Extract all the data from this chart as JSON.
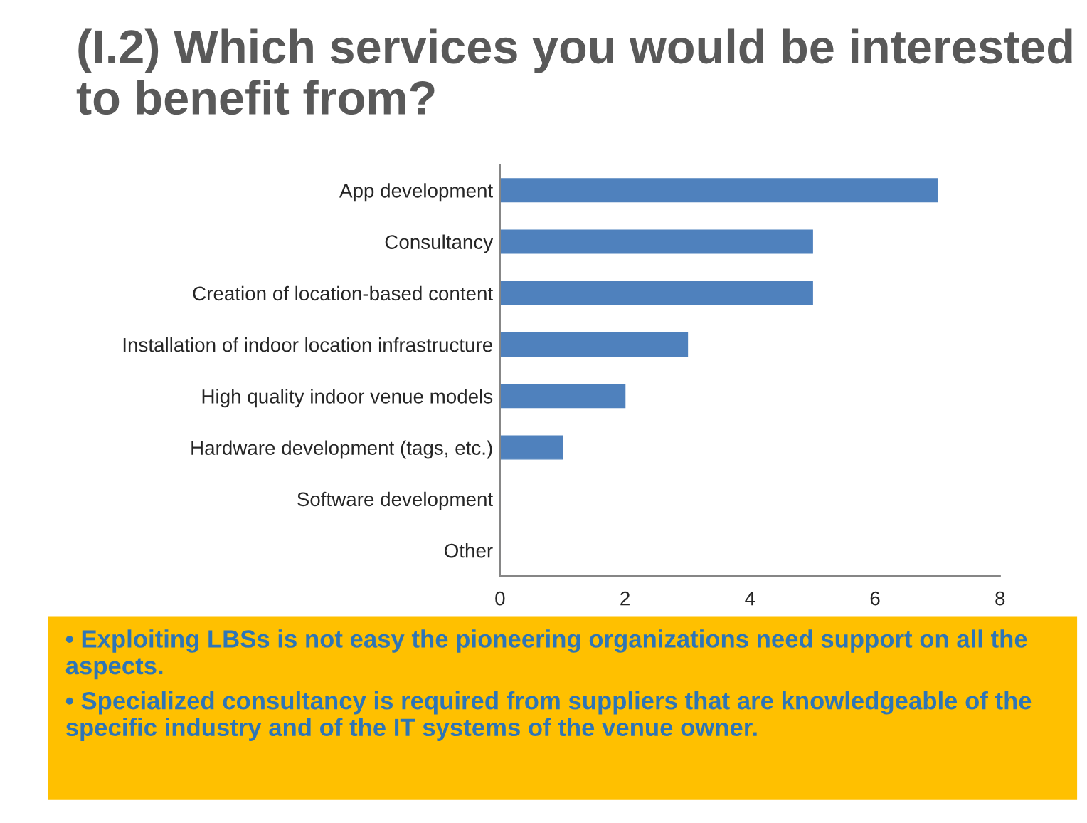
{
  "chart_data": {
    "type": "bar",
    "orientation": "horizontal",
    "title": "(I.2) Which services you would be interested to benefit from?",
    "categories": [
      "App development",
      "Consultancy",
      "Creation of location-based content",
      "Installation of indoor location infrastructure",
      "High quality indoor venue models",
      "Hardware development (tags, etc.)",
      "Software development",
      "Other"
    ],
    "values": [
      7,
      5,
      5,
      3,
      2,
      1,
      0,
      0
    ],
    "color": "#4f81bd",
    "xlim": [
      0,
      8
    ],
    "xticks": [
      0,
      2,
      4,
      6,
      8
    ],
    "grid": false,
    "annotations": [
      "• Exploiting LBSs is not easy the pioneering organizations need support on all the aspects.",
      "• Specialized consultancy is required from suppliers that are knowledgeable of the specific industry and of the IT systems of the venue owner."
    ]
  }
}
